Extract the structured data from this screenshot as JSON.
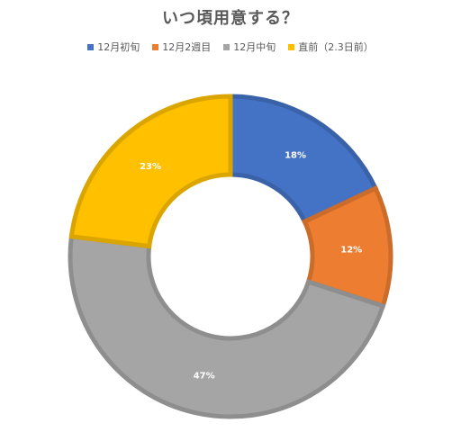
{
  "title": "いつ頃用意する？",
  "chart_data": {
    "type": "pie",
    "variant": "donut",
    "title": "いつ頃用意する？",
    "legend_position": "top",
    "series": [
      {
        "name": "12月初旬",
        "value": 18,
        "label": "18%",
        "color": "#4472C4"
      },
      {
        "name": "12月2週目",
        "value": 12,
        "label": "12%",
        "color": "#ED7D31"
      },
      {
        "name": "12月中旬",
        "value": 47,
        "label": "47%",
        "color": "#A5A5A5"
      },
      {
        "name": "直前（2.3日前）",
        "value": 23,
        "label": "23%",
        "color": "#FFC000"
      }
    ]
  }
}
